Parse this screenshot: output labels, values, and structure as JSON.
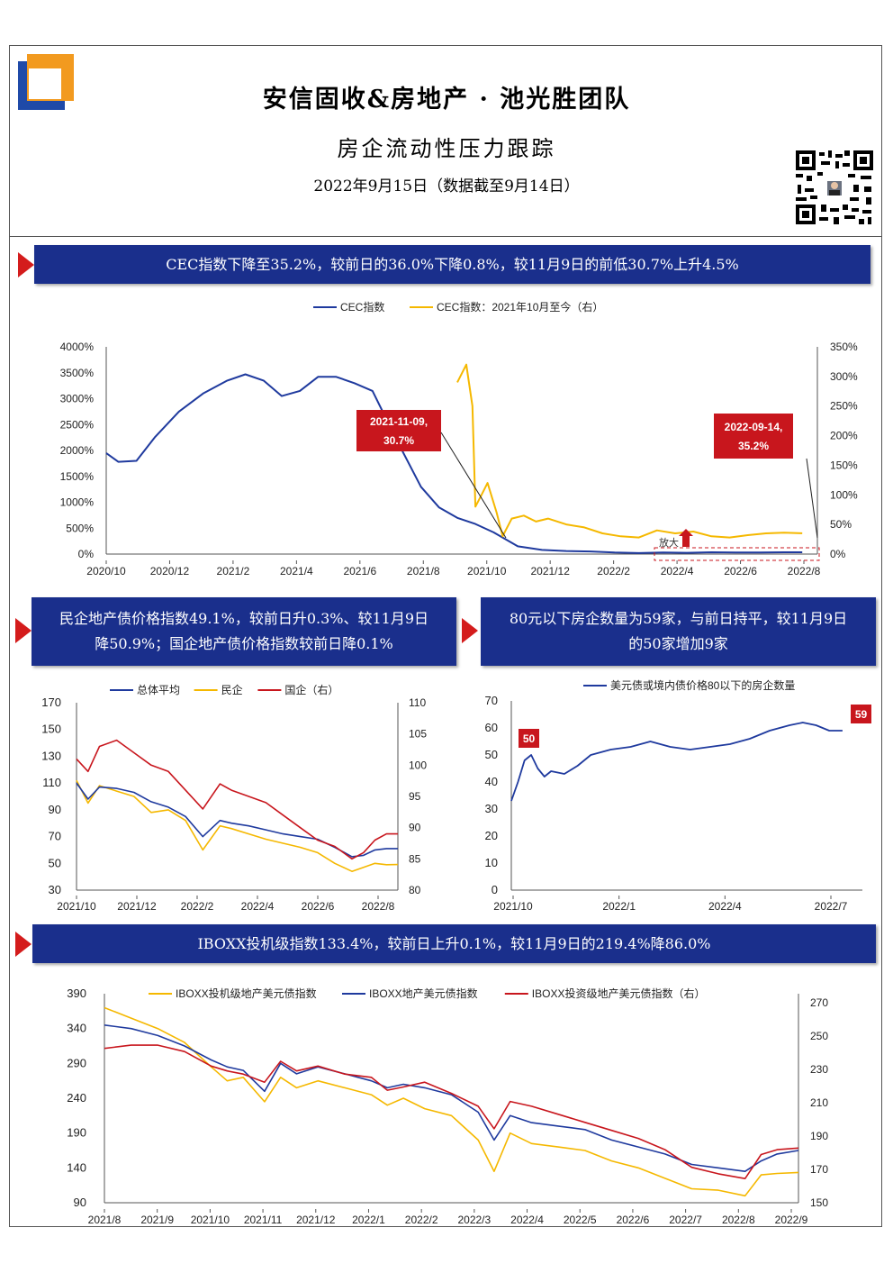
{
  "header": {
    "title": "安信固收&房地产 · 池光胜团队",
    "subtitle": "房企流动性压力跟踪",
    "date": "2022年9月15日（数据截至9月14日）"
  },
  "banners": {
    "b1": "CEC指数下降至35.2%，较前日的36.0%下降0.8%，较11月9日的前低30.7%上升4.5%",
    "b2_line1": "民企地产债价格指数49.1%，较前日升0.3%、较11月9日",
    "b2_line2": "降50.9%；国企地产债价格指数较前日降0.1%",
    "b3_line1": "80元以下房企数量为59家，与前日持平，较11月9日",
    "b3_line2": "的50家增加9家",
    "b4": "IBOXX投机级指数133.4%，较前日上升0.1%，较11月9日的219.4%降86.0%"
  },
  "colors": {
    "blue": "#1f3a9e",
    "yellow": "#f5b800",
    "red": "#c8161d",
    "banner": "#1a2f8c"
  },
  "chart_data": [
    {
      "id": "c1",
      "type": "line",
      "legend": [
        "CEC指数",
        "CEC指数：2021年10月至今（右）"
      ],
      "y_ticks": [
        "4000%",
        "3500%",
        "3000%",
        "2500%",
        "2000%",
        "1500%",
        "1000%",
        "500%",
        "0%"
      ],
      "y2_ticks": [
        "350%",
        "300%",
        "250%",
        "200%",
        "150%",
        "100%",
        "50%",
        "0%"
      ],
      "x_ticks": [
        "2020/10",
        "2020/12",
        "2021/2",
        "2021/4",
        "2021/6",
        "2021/8",
        "2021/10",
        "2021/12",
        "2022/2",
        "2022/4",
        "2022/6",
        "2022/8"
      ],
      "ylim": [
        0,
        4000
      ],
      "y2lim": [
        0,
        350
      ],
      "series_blue_x": [
        0,
        0.2,
        0.5,
        0.8,
        1.2,
        1.6,
        2.0,
        2.3,
        2.6,
        2.9,
        3.2,
        3.5,
        3.8,
        4.1,
        4.4,
        4.8,
        5.2,
        5.5,
        5.8,
        6.1,
        6.4,
        6.8,
        7.2,
        7.6,
        8.0,
        8.4,
        8.8,
        9.2,
        9.6,
        10.0,
        10.4,
        10.8,
        11.2,
        11.5
      ],
      "series_blue_y": [
        1950,
        1780,
        1800,
        2250,
        2750,
        3100,
        3350,
        3470,
        3350,
        3050,
        3150,
        3420,
        3420,
        3300,
        3150,
        2200,
        1300,
        900,
        700,
        580,
        420,
        150,
        80,
        60,
        50,
        30,
        20,
        30,
        25,
        35,
        30,
        30,
        35,
        35
      ],
      "series_yellow_x": [
        5.8,
        5.95,
        6.05,
        6.1,
        6.2,
        6.3,
        6.45,
        6.55,
        6.6,
        6.7,
        6.9,
        7.1,
        7.3,
        7.6,
        7.9,
        8.2,
        8.5,
        8.8,
        9.1,
        9.4,
        9.7,
        10.0,
        10.3,
        10.6,
        10.9,
        11.2,
        11.5
      ],
      "series_yellow_y": [
        290,
        320,
        250,
        80,
        100,
        120,
        70,
        30,
        40,
        60,
        65,
        55,
        60,
        50,
        45,
        35,
        30,
        28,
        40,
        35,
        38,
        30,
        28,
        32,
        35,
        36,
        35.2
      ],
      "annotations": [
        {
          "line1": "2021-11-09,",
          "line2": "30.7%"
        },
        {
          "line1": "2022-09-14,",
          "line2": "35.2%"
        }
      ],
      "small_label": "放大"
    },
    {
      "id": "c2",
      "type": "line",
      "legend": [
        "总体平均",
        "民企",
        "国企（右）"
      ],
      "y_ticks": [
        "170",
        "150",
        "130",
        "110",
        "90",
        "70",
        "50",
        "30"
      ],
      "y2_ticks": [
        "110",
        "105",
        "100",
        "95",
        "90",
        "85",
        "80"
      ],
      "x_ticks": [
        "2021/10",
        "2021/12",
        "2022/2",
        "2022/4",
        "2022/6",
        "2022/8"
      ],
      "ylim": [
        30,
        170
      ],
      "y2lim": [
        80,
        110
      ],
      "x": [
        0,
        0.2,
        0.4,
        0.7,
        1.0,
        1.3,
        1.6,
        1.9,
        2.2,
        2.5,
        2.7,
        3.0,
        3.3,
        3.6,
        3.9,
        4.2,
        4.5,
        4.8,
        5.0,
        5.2,
        5.4,
        5.6
      ],
      "series_avg": [
        110,
        98,
        107,
        106,
        103,
        96,
        92,
        85,
        70,
        82,
        80,
        78,
        75,
        72,
        70,
        68,
        62,
        55,
        56,
        60,
        61,
        61
      ],
      "series_private": [
        112,
        95,
        108,
        104,
        100,
        88,
        90,
        82,
        60,
        78,
        76,
        72,
        68,
        65,
        62,
        58,
        50,
        44,
        47,
        50,
        49,
        49.1
      ],
      "series_state": [
        101,
        99,
        103,
        104,
        102,
        100,
        99,
        96,
        93,
        97,
        96,
        95,
        94,
        92,
        90,
        88,
        87,
        85,
        86,
        88,
        89,
        89
      ]
    },
    {
      "id": "c3",
      "type": "line",
      "legend": [
        "美元债或境内债价格80以下的房企数量"
      ],
      "y_ticks": [
        "70",
        "60",
        "50",
        "40",
        "30",
        "20",
        "10",
        "0"
      ],
      "x_ticks": [
        "2021/10",
        "2022/1",
        "2022/4",
        "2022/7"
      ],
      "ylim": [
        0,
        70
      ],
      "x": [
        0,
        0.1,
        0.2,
        0.3,
        0.4,
        0.5,
        0.6,
        0.8,
        1.0,
        1.2,
        1.5,
        1.8,
        2.1,
        2.4,
        2.7,
        3.0,
        3.3,
        3.6,
        3.9,
        4.2,
        4.4,
        4.6,
        4.8,
        5.0
      ],
      "values": [
        33,
        40,
        48,
        50,
        45,
        42,
        44,
        43,
        46,
        50,
        52,
        53,
        55,
        53,
        52,
        53,
        54,
        56,
        59,
        61,
        62,
        61,
        59,
        59
      ],
      "labels": [
        "50",
        "59"
      ]
    },
    {
      "id": "c4",
      "type": "line",
      "legend": [
        "IBOXX投机级地产美元债指数",
        "IBOXX地产美元债指数",
        "IBOXX投资级地产美元债指数（右）"
      ],
      "y_ticks": [
        "390",
        "340",
        "290",
        "240",
        "190",
        "140",
        "90"
      ],
      "y2_ticks": [
        "270",
        "250",
        "230",
        "210",
        "190",
        "170",
        "150"
      ],
      "x_ticks": [
        "2021/8",
        "2021/9",
        "2021/10",
        "2021/11",
        "2021/12",
        "2022/1",
        "2022/2",
        "2022/3",
        "2022/4",
        "2022/5",
        "2022/6",
        "2022/7",
        "2022/8",
        "2022/9"
      ],
      "ylim": [
        90,
        390
      ],
      "y2lim": [
        150,
        270
      ],
      "x": [
        0,
        0.5,
        1,
        1.5,
        2,
        2.3,
        2.6,
        3,
        3.3,
        3.6,
        4,
        4.5,
        5,
        5.3,
        5.6,
        6,
        6.5,
        7,
        7.3,
        7.6,
        8,
        8.5,
        9,
        9.5,
        10,
        10.5,
        11,
        11.5,
        12,
        12.3,
        12.6,
        13
      ],
      "series_spec": [
        370,
        355,
        340,
        320,
        285,
        265,
        270,
        235,
        270,
        255,
        265,
        255,
        245,
        230,
        240,
        225,
        215,
        180,
        135,
        190,
        175,
        170,
        165,
        150,
        140,
        125,
        110,
        108,
        100,
        130,
        132,
        133.4
      ],
      "series_all": [
        345,
        340,
        330,
        315,
        295,
        285,
        280,
        250,
        290,
        275,
        285,
        275,
        265,
        255,
        260,
        255,
        245,
        220,
        180,
        215,
        205,
        200,
        195,
        180,
        170,
        160,
        145,
        140,
        135,
        150,
        160,
        165
      ],
      "series_ig": [
        246,
        248,
        248,
        244,
        235,
        232,
        230,
        225,
        238,
        232,
        235,
        230,
        228,
        220,
        222,
        225,
        218,
        210,
        196,
        213,
        210,
        205,
        200,
        195,
        190,
        183,
        172,
        168,
        165,
        180,
        183,
        184
      ]
    }
  ]
}
